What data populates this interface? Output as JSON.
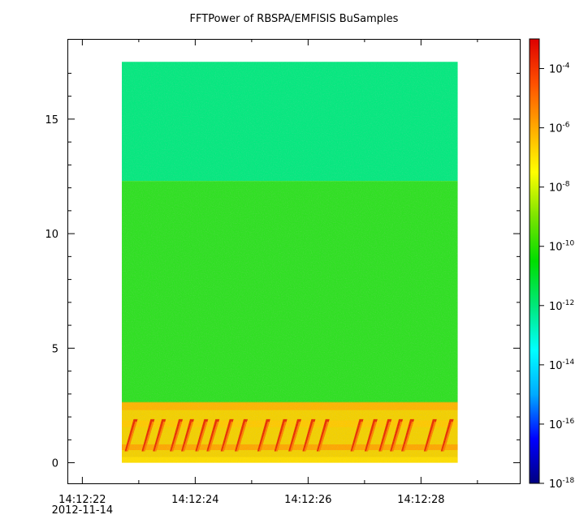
{
  "chart_data": {
    "type": "heatmap",
    "title": "FFTPower of RBSPA/EMFISIS  BuSamples",
    "xlabel": "",
    "ylabel": "",
    "x_ticks": [
      {
        "label": "14:12:22",
        "sublabel": "2012-11-14",
        "t": 0
      },
      {
        "label": "14:12:24",
        "t": 2
      },
      {
        "label": "14:12:26",
        "t": 4
      },
      {
        "label": "14:12:28",
        "t": 6
      }
    ],
    "x_minor_ticks": [
      1,
      3,
      5,
      7
    ],
    "xlim_seconds_after_14_12_22": [
      -0.25,
      7.75
    ],
    "data_time_range_seconds": [
      0.7,
      6.65
    ],
    "y_ticks": [
      0,
      5,
      10,
      15
    ],
    "ylim": [
      -0.9,
      18.5
    ],
    "data_y_range": [
      0,
      17.5
    ],
    "colorbar": {
      "scale": "log",
      "range": [
        1e-18,
        0.001
      ],
      "ticks": [
        {
          "base": "10",
          "exp": "-4",
          "value": 0.0001
        },
        {
          "base": "10",
          "exp": "-6",
          "value": 1e-06
        },
        {
          "base": "10",
          "exp": "-8",
          "value": 1e-08
        },
        {
          "base": "10",
          "exp": "-10",
          "value": 1e-10
        },
        {
          "base": "10",
          "exp": "-12",
          "value": 1e-12
        },
        {
          "base": "10",
          "exp": "-14",
          "value": 1e-14
        },
        {
          "base": "10",
          "exp": "-16",
          "value": 1e-16
        },
        {
          "base": "10",
          "exp": "-18",
          "value": 1e-18
        }
      ],
      "colors": [
        "#000080",
        "#0000ff",
        "#00aaff",
        "#00ffff",
        "#00e87a",
        "#00dd00",
        "#7be400",
        "#ffff00",
        "#ffaa00",
        "#ff5000",
        "#dd0000"
      ]
    },
    "bands": [
      {
        "name": "upper",
        "y_range": [
          12.3,
          17.5
        ],
        "log_power": -12.6,
        "color": "#05e87f"
      },
      {
        "name": "middle",
        "y_range": [
          2.6,
          12.3
        ],
        "log_power": -10.5,
        "color": "#2fe022"
      },
      {
        "name": "lower-emission",
        "y_range": [
          0,
          2.6
        ],
        "log_power": -8.2,
        "color": "#f3d000"
      }
    ],
    "bursts_seconds_after_14_12_22": [
      0.75,
      1.05,
      1.25,
      1.55,
      1.75,
      2.0,
      2.2,
      2.45,
      2.7,
      3.1,
      3.4,
      3.65,
      3.9,
      4.15,
      4.75,
      5.0,
      5.25,
      5.45,
      5.65,
      6.05,
      6.35
    ],
    "grid": false,
    "legend": "none"
  }
}
